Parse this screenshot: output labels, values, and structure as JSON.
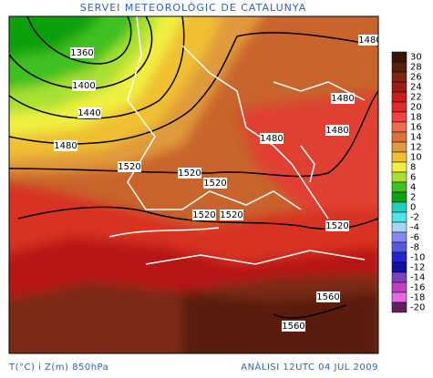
{
  "header": {
    "title": "SERVEI METEOROLÒGIC DE CATALUNYA"
  },
  "footer": {
    "left": "T(°C) i Z(m) 850hPa",
    "right": "ANÀLISI 12UTC 04 JUL 2009"
  },
  "legend": {
    "items": [
      {
        "label": "30",
        "color": "#3c1408"
      },
      {
        "label": "28",
        "color": "#5a1e0e"
      },
      {
        "label": "26",
        "color": "#7c2812"
      },
      {
        "label": "24",
        "color": "#a01a18"
      },
      {
        "label": "22",
        "color": "#c81c1c"
      },
      {
        "label": "20",
        "color": "#e02a28"
      },
      {
        "label": "18",
        "color": "#f04444"
      },
      {
        "label": "16",
        "color": "#f06c4c"
      },
      {
        "label": "14",
        "color": "#d8743a"
      },
      {
        "label": "12",
        "color": "#e09a3a"
      },
      {
        "label": "10",
        "color": "#f0c030"
      },
      {
        "label": "8",
        "color": "#f0f040"
      },
      {
        "label": "6",
        "color": "#a8e030"
      },
      {
        "label": "4",
        "color": "#40c020"
      },
      {
        "label": "2",
        "color": "#10a010"
      },
      {
        "label": "0",
        "color": "#20d0c0"
      },
      {
        "label": "-2",
        "color": "#50e4e8"
      },
      {
        "label": "-4",
        "color": "#a8d4f4"
      },
      {
        "label": "-6",
        "color": "#8888f0"
      },
      {
        "label": "-8",
        "color": "#5858e0"
      },
      {
        "label": "-10",
        "color": "#2424d0"
      },
      {
        "label": "-12",
        "color": "#1010a8"
      },
      {
        "label": "-14",
        "color": "#8040c0"
      },
      {
        "label": "-16",
        "color": "#c040c0"
      },
      {
        "label": "-18",
        "color": "#e468e4"
      },
      {
        "label": "-20",
        "color": "#602060"
      }
    ]
  },
  "contour_labels": [
    "1360",
    "1400",
    "1440",
    "1480",
    "1480",
    "1480",
    "1480",
    "1480",
    "1520",
    "1520",
    "1520",
    "1520",
    "1520",
    "1520",
    "1560",
    "1560"
  ]
}
